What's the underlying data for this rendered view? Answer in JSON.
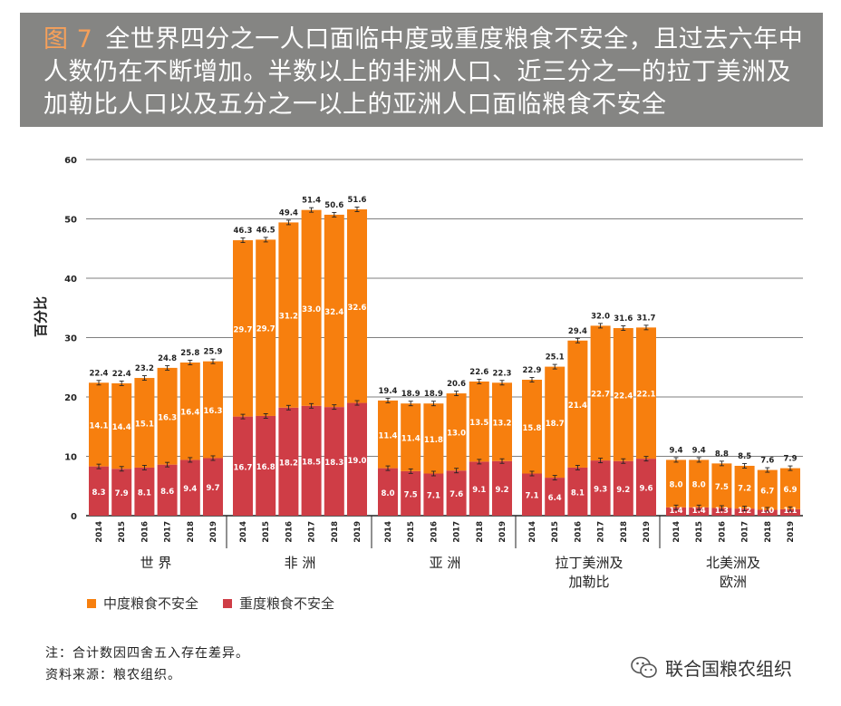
{
  "title": {
    "fig_label": "图 7",
    "line1": "全世界四分之一人口面临中度或重度粮食不安全，且过去六年中",
    "line2": "人数仍在不断增加。半数以上的非洲人口、近三分之一的拉丁美洲及",
    "line3": "加勒比人口以及五分之一以上的亚洲人口面临粮食不安全"
  },
  "legend": {
    "moderate": "中度粮食不安全",
    "severe": "重度粮食不安全"
  },
  "notes": {
    "note1": "注：合计数因四舍五入存在差异。",
    "note2": "资料来源：粮农组织。"
  },
  "brand": {
    "name": "联合国粮农组织",
    "icon": "wechat-icon"
  },
  "colors": {
    "moderate": "#f77f0e",
    "severe": "#cf3d46",
    "title_bg": "#858583",
    "fig_label": "#f6a05a"
  },
  "chart_data": {
    "type": "bar",
    "stacked": true,
    "ylabel": "百分比",
    "ylim": [
      0,
      60
    ],
    "yticks": [
      0,
      10,
      20,
      30,
      40,
      50,
      60
    ],
    "grid": true,
    "legend_position": "bottom-left",
    "years": [
      "2014",
      "2015",
      "2016",
      "2017",
      "2018",
      "2019"
    ],
    "groups": [
      {
        "name": "世 界",
        "severe": [
          8.3,
          7.9,
          8.1,
          8.6,
          9.4,
          9.7
        ],
        "moderate": [
          14.1,
          14.4,
          15.1,
          16.3,
          16.4,
          16.3
        ],
        "totals": [
          "22.4",
          "22.4",
          "23.2",
          "24.8",
          "25.8",
          "25.9"
        ]
      },
      {
        "name": "非 洲",
        "severe": [
          16.7,
          16.8,
          18.2,
          18.5,
          18.3,
          19.0
        ],
        "moderate": [
          29.7,
          29.7,
          31.2,
          33.0,
          32.4,
          32.6
        ],
        "totals": [
          "46.3",
          "46.5",
          "49.4",
          "51.4",
          "50.6",
          "51.6"
        ]
      },
      {
        "name": "亚 洲",
        "severe": [
          8.0,
          7.5,
          7.1,
          7.6,
          9.1,
          9.2
        ],
        "moderate": [
          11.4,
          11.4,
          11.8,
          13.0,
          13.5,
          13.2
        ],
        "totals": [
          "19.4",
          "18.9",
          "18.9",
          "20.6",
          "22.6",
          "22.3"
        ]
      },
      {
        "name": "拉丁美洲及\n加勒比",
        "severe": [
          7.1,
          6.4,
          8.1,
          9.3,
          9.2,
          9.6
        ],
        "moderate": [
          15.8,
          18.7,
          21.4,
          22.7,
          22.4,
          22.1
        ],
        "totals": [
          "22.9",
          "25.1",
          "29.4",
          "32.0",
          "31.6",
          "31.7"
        ]
      },
      {
        "name": "北美洲及\n欧洲",
        "severe": [
          1.4,
          1.4,
          1.3,
          1.2,
          1.0,
          1.1
        ],
        "moderate": [
          8.0,
          8.0,
          7.5,
          7.2,
          6.7,
          6.9
        ],
        "totals": [
          "9.4",
          "9.4",
          "8.8",
          "8.5",
          "7.6",
          "7.9"
        ]
      }
    ]
  }
}
